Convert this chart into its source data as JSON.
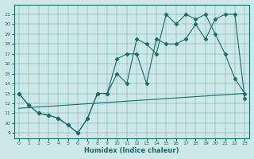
{
  "xlabel": "Humidex (Indice chaleur)",
  "xlim": [
    -0.5,
    23.5
  ],
  "ylim": [
    8.5,
    22
  ],
  "yticks": [
    9,
    10,
    11,
    12,
    13,
    14,
    15,
    16,
    17,
    18,
    19,
    20,
    21
  ],
  "xticks": [
    0,
    1,
    2,
    3,
    4,
    5,
    6,
    7,
    8,
    9,
    10,
    11,
    12,
    13,
    14,
    15,
    16,
    17,
    18,
    19,
    20,
    21,
    22,
    23
  ],
  "bg_color": "#cce8e8",
  "line_color": "#1a6b6b",
  "line1_x": [
    0,
    1,
    2,
    3,
    4,
    5,
    6,
    7,
    8,
    9,
    10,
    11,
    12,
    13,
    14,
    15,
    16,
    17,
    18,
    19,
    20,
    21,
    22,
    23
  ],
  "line1_y": [
    13,
    11.8,
    11,
    10.8,
    10.5,
    9.8,
    9,
    10.5,
    13,
    13,
    15,
    14,
    18.5,
    18,
    17,
    21,
    20,
    21,
    20.5,
    21,
    19,
    17,
    14.5,
    13
  ],
  "line2_x": [
    0,
    1,
    2,
    3,
    4,
    5,
    6,
    7,
    8,
    9,
    10,
    11,
    12,
    13,
    14,
    15,
    16,
    17,
    18,
    19,
    20,
    21,
    22,
    23
  ],
  "line2_y": [
    13,
    11.8,
    11,
    10.8,
    10.5,
    9.8,
    9,
    10.5,
    13,
    13,
    16.5,
    17,
    17,
    14,
    18.5,
    18,
    18,
    18.5,
    20,
    18.5,
    20.5,
    21,
    21,
    12.5
  ],
  "line3_x": [
    0,
    23
  ],
  "line3_y": [
    11.5,
    13
  ],
  "marker": "D",
  "marker_size": 2.5
}
